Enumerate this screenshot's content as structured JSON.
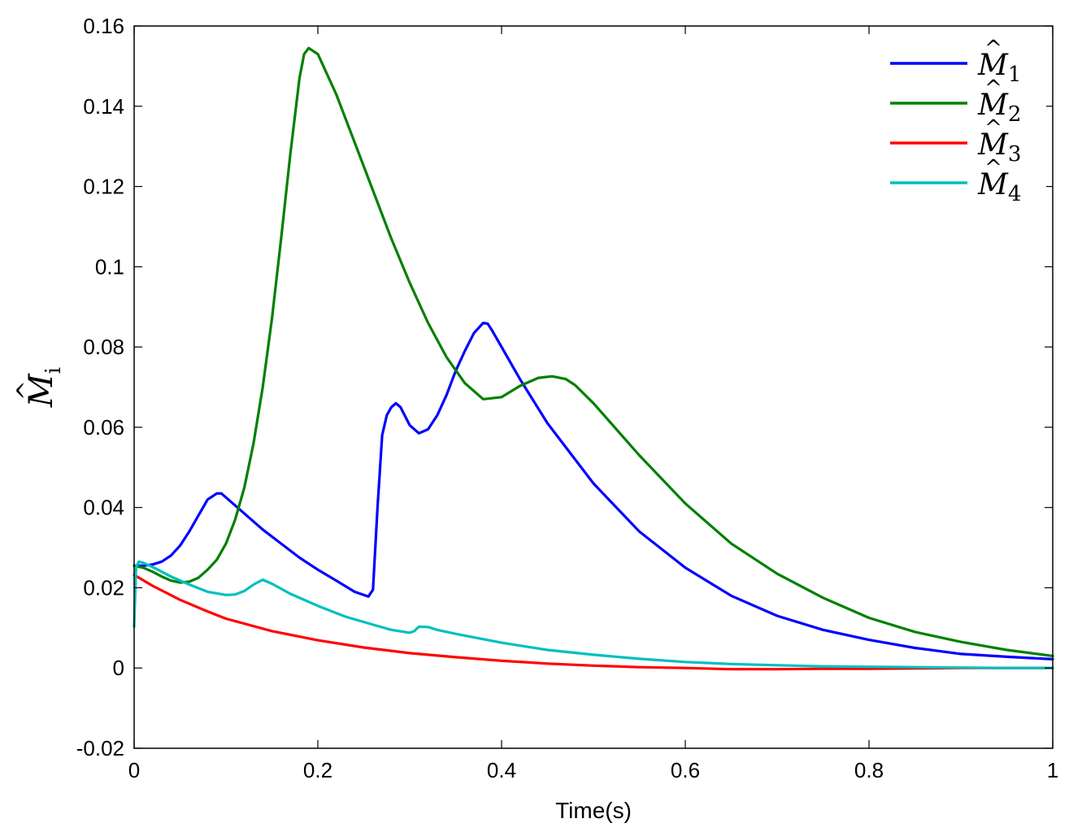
{
  "chart_data": {
    "type": "line",
    "xlabel": "Time(s)",
    "ylabel": {
      "base": "M",
      "hat": "^",
      "sub": "i"
    },
    "xlim": [
      0,
      1
    ],
    "ylim": [
      -0.02,
      0.16
    ],
    "xticks": [
      0,
      0.2,
      0.4,
      0.6,
      0.8,
      1
    ],
    "yticks": [
      -0.02,
      0,
      0.02,
      0.04,
      0.06,
      0.08,
      0.1,
      0.12,
      0.14,
      0.16
    ],
    "xtick_labels": [
      "0",
      "0.2",
      "0.4",
      "0.6",
      "0.8",
      "1"
    ],
    "ytick_labels": [
      "-0.02",
      "0",
      "0.02",
      "0.04",
      "0.06",
      "0.08",
      "0.1",
      "0.12",
      "0.14",
      "0.16"
    ],
    "grid": false,
    "legend": "top-right",
    "series": [
      {
        "name": "M̂1",
        "base": "M",
        "hat": "^",
        "sub": "1",
        "color": "#0000ff",
        "x": [
          0,
          0.01,
          0.02,
          0.03,
          0.04,
          0.05,
          0.06,
          0.07,
          0.08,
          0.09,
          0.095,
          0.1,
          0.12,
          0.14,
          0.16,
          0.18,
          0.2,
          0.22,
          0.24,
          0.255,
          0.26,
          0.265,
          0.27,
          0.275,
          0.28,
          0.285,
          0.29,
          0.3,
          0.31,
          0.32,
          0.33,
          0.34,
          0.35,
          0.36,
          0.37,
          0.38,
          0.385,
          0.39,
          0.4,
          0.42,
          0.45,
          0.5,
          0.55,
          0.6,
          0.65,
          0.7,
          0.75,
          0.8,
          0.85,
          0.9,
          0.95,
          1.0
        ],
        "y": [
          0.0255,
          0.0255,
          0.0258,
          0.0265,
          0.028,
          0.0305,
          0.034,
          0.038,
          0.042,
          0.0435,
          0.0435,
          0.0425,
          0.0385,
          0.0345,
          0.031,
          0.0275,
          0.0245,
          0.0218,
          0.019,
          0.0178,
          0.0195,
          0.04,
          0.058,
          0.063,
          0.065,
          0.066,
          0.065,
          0.0605,
          0.0585,
          0.0595,
          0.063,
          0.068,
          0.074,
          0.079,
          0.0835,
          0.086,
          0.0858,
          0.084,
          0.08,
          0.072,
          0.061,
          0.046,
          0.034,
          0.025,
          0.018,
          0.013,
          0.0095,
          0.007,
          0.005,
          0.0035,
          0.0028,
          0.0022
        ]
      },
      {
        "name": "M̂2",
        "base": "M",
        "hat": "^",
        "sub": "2",
        "color": "#008000",
        "x": [
          0,
          0.01,
          0.02,
          0.03,
          0.04,
          0.05,
          0.06,
          0.07,
          0.08,
          0.09,
          0.1,
          0.11,
          0.12,
          0.13,
          0.14,
          0.15,
          0.16,
          0.17,
          0.18,
          0.185,
          0.19,
          0.2,
          0.21,
          0.22,
          0.24,
          0.26,
          0.28,
          0.3,
          0.32,
          0.34,
          0.36,
          0.38,
          0.4,
          0.42,
          0.44,
          0.455,
          0.47,
          0.48,
          0.5,
          0.55,
          0.6,
          0.65,
          0.7,
          0.75,
          0.8,
          0.85,
          0.9,
          0.95,
          1.0
        ],
        "y": [
          0.0255,
          0.025,
          0.024,
          0.0228,
          0.0218,
          0.0213,
          0.0215,
          0.0225,
          0.0245,
          0.027,
          0.031,
          0.037,
          0.045,
          0.056,
          0.07,
          0.087,
          0.107,
          0.128,
          0.147,
          0.153,
          0.1545,
          0.153,
          0.148,
          0.143,
          0.131,
          0.119,
          0.107,
          0.096,
          0.086,
          0.0775,
          0.071,
          0.067,
          0.0675,
          0.0703,
          0.0723,
          0.0727,
          0.072,
          0.0705,
          0.066,
          0.053,
          0.041,
          0.031,
          0.0235,
          0.0175,
          0.0125,
          0.009,
          0.0065,
          0.0045,
          0.003
        ]
      },
      {
        "name": "M̂3",
        "base": "M",
        "hat": "^",
        "sub": "3",
        "color": "#ff0000",
        "x": [
          0,
          0.02,
          0.05,
          0.08,
          0.1,
          0.15,
          0.2,
          0.25,
          0.3,
          0.35,
          0.4,
          0.45,
          0.5,
          0.55,
          0.6,
          0.65,
          0.7,
          0.75,
          0.8,
          0.85,
          0.9,
          0.95,
          1.0
        ],
        "y": [
          0.0232,
          0.0205,
          0.017,
          0.0141,
          0.0123,
          0.0092,
          0.0069,
          0.0051,
          0.0037,
          0.0027,
          0.0018,
          0.0011,
          0.0006,
          0.0002,
          0.0,
          -0.0003,
          -0.0003,
          -0.0002,
          -0.0002,
          -0.0001,
          0.0,
          0.0,
          0.0
        ]
      },
      {
        "name": "M̂4",
        "base": "M",
        "hat": "^",
        "sub": "4",
        "color": "#00bfbf",
        "x": [
          0,
          0.002,
          0.005,
          0.01,
          0.02,
          0.04,
          0.06,
          0.08,
          0.1,
          0.11,
          0.12,
          0.13,
          0.14,
          0.15,
          0.17,
          0.2,
          0.23,
          0.26,
          0.28,
          0.3,
          0.305,
          0.31,
          0.32,
          0.33,
          0.35,
          0.4,
          0.45,
          0.5,
          0.55,
          0.6,
          0.65,
          0.7,
          0.75,
          0.8,
          0.85,
          0.9,
          0.95,
          1.0
        ],
        "y": [
          0.0103,
          0.025,
          0.0265,
          0.0262,
          0.0252,
          0.0228,
          0.0208,
          0.019,
          0.0182,
          0.0183,
          0.0192,
          0.0208,
          0.022,
          0.021,
          0.0185,
          0.0155,
          0.0128,
          0.0108,
          0.0095,
          0.0088,
          0.0092,
          0.0103,
          0.0102,
          0.0095,
          0.0085,
          0.0063,
          0.0045,
          0.0033,
          0.0023,
          0.0015,
          0.001,
          0.0007,
          0.0004,
          0.0003,
          0.0002,
          0.0001,
          0.0,
          0.0
        ]
      }
    ]
  }
}
